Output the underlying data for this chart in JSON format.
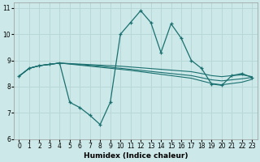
{
  "xlabel": "Humidex (Indice chaleur)",
  "xlim": [
    -0.5,
    23.5
  ],
  "ylim": [
    6,
    11.2
  ],
  "yticks": [
    6,
    7,
    8,
    9,
    10,
    11
  ],
  "xticks": [
    0,
    1,
    2,
    3,
    4,
    5,
    6,
    7,
    8,
    9,
    10,
    11,
    12,
    13,
    14,
    15,
    16,
    17,
    18,
    19,
    20,
    21,
    22,
    23
  ],
  "bg_color": "#cce8e8",
  "grid_color": "#b8d8d8",
  "line_color": "#1a7070",
  "lines": [
    {
      "x": [
        0,
        1,
        2,
        3,
        4,
        5,
        6,
        7,
        8,
        9,
        10,
        11,
        12,
        13,
        14,
        15,
        16,
        17,
        18,
        19,
        20,
        21,
        22,
        23
      ],
      "y": [
        8.4,
        8.7,
        8.8,
        8.85,
        8.9,
        8.88,
        8.86,
        8.84,
        8.82,
        8.8,
        8.78,
        8.75,
        8.72,
        8.69,
        8.66,
        8.63,
        8.6,
        8.57,
        8.5,
        8.42,
        8.38,
        8.42,
        8.45,
        8.38
      ],
      "marker": false
    },
    {
      "x": [
        0,
        1,
        2,
        3,
        4,
        5,
        6,
        7,
        8,
        9,
        10,
        11,
        12,
        13,
        14,
        15,
        16,
        17,
        18,
        19,
        20,
        21,
        22,
        23
      ],
      "y": [
        8.4,
        8.7,
        8.8,
        8.85,
        8.9,
        8.87,
        8.84,
        8.81,
        8.78,
        8.74,
        8.7,
        8.66,
        8.62,
        8.58,
        8.54,
        8.5,
        8.46,
        8.42,
        8.34,
        8.26,
        8.22,
        8.26,
        8.3,
        8.35
      ],
      "marker": false
    },
    {
      "x": [
        0,
        1,
        2,
        3,
        4,
        5,
        6,
        7,
        8,
        9,
        10,
        11,
        12,
        13,
        14,
        15,
        16,
        17,
        18,
        19,
        20,
        21,
        22,
        23
      ],
      "y": [
        8.4,
        8.7,
        8.8,
        8.85,
        8.9,
        8.86,
        8.82,
        8.78,
        8.74,
        8.7,
        8.66,
        8.62,
        8.57,
        8.52,
        8.47,
        8.42,
        8.37,
        8.32,
        8.22,
        8.12,
        8.07,
        8.12,
        8.17,
        8.28
      ],
      "marker": false
    },
    {
      "x": [
        0,
        1,
        2,
        3,
        4,
        5,
        6,
        7,
        8,
        9,
        10,
        11,
        12,
        13,
        14,
        15,
        16,
        17,
        18,
        19,
        20,
        21,
        22,
        23
      ],
      "y": [
        8.4,
        8.7,
        8.8,
        8.85,
        8.9,
        7.4,
        7.2,
        6.9,
        6.55,
        7.4,
        10.0,
        10.45,
        10.9,
        10.45,
        9.3,
        10.4,
        9.85,
        9.0,
        8.7,
        8.1,
        8.05,
        8.42,
        8.5,
        8.35
      ],
      "marker": true
    }
  ]
}
